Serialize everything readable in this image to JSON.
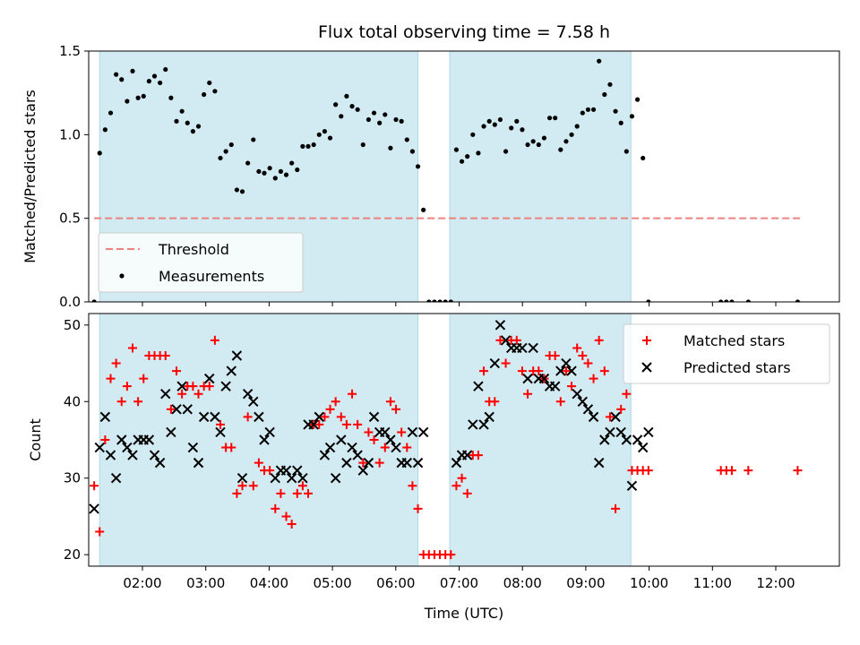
{
  "chart_data": [
    {
      "type": "scatter",
      "title": "Flux total observing time = 7.58 h",
      "ylabel": "Matched/Predicted stars",
      "xlabel": "",
      "xlim": [
        96,
        780
      ],
      "ylim": [
        0,
        1.5
      ],
      "x_ticks": [
        "02:00",
        "03:00",
        "04:00",
        "05:00",
        "06:00",
        "07:00",
        "08:00",
        "09:00",
        "10:00",
        "11:00",
        "12:00"
      ],
      "y_ticks": [
        "0.0",
        "0.5",
        "1.0",
        "1.5"
      ],
      "grid": false,
      "legend_position": "lower-left",
      "observing_windows": [
        [
          106,
          396
        ],
        [
          425,
          590
        ]
      ],
      "window_color": "#add8e6",
      "series": [
        {
          "name": "Threshold",
          "kind": "dashed-line",
          "color": "#f08080",
          "x": [
            101,
            744
          ],
          "y": [
            0.5,
            0.5
          ]
        },
        {
          "name": "Measurements",
          "kind": "dots",
          "color": "#000000",
          "x": [
            101,
            106,
            111,
            116,
            121,
            126,
            131,
            136,
            141,
            146,
            151,
            156,
            161,
            166,
            171,
            176,
            181,
            186,
            191,
            196,
            201,
            206,
            211,
            216,
            221,
            226,
            231,
            236,
            241,
            246,
            251,
            256,
            261,
            266,
            271,
            276,
            281,
            286,
            291,
            296,
            301,
            306,
            311,
            316,
            321,
            326,
            331,
            336,
            341,
            346,
            351,
            356,
            361,
            366,
            371,
            376,
            381,
            386,
            391,
            396,
            401,
            406,
            411,
            416,
            421,
            426,
            431,
            436,
            441,
            446,
            451,
            456,
            461,
            466,
            471,
            476,
            481,
            486,
            491,
            496,
            501,
            506,
            511,
            516,
            521,
            526,
            531,
            536,
            541,
            546,
            551,
            556,
            561,
            566,
            571,
            576,
            581,
            586,
            591,
            596,
            601,
            606,
            672,
            677,
            682,
            697,
            742
          ],
          "y": [
            0.0,
            0.89,
            1.03,
            1.13,
            1.36,
            1.33,
            1.2,
            1.38,
            1.22,
            1.23,
            1.32,
            1.35,
            1.31,
            1.39,
            1.22,
            1.08,
            1.14,
            1.07,
            1.02,
            1.05,
            1.24,
            1.31,
            1.26,
            0.86,
            0.9,
            0.94,
            0.67,
            0.66,
            0.83,
            0.97,
            0.78,
            0.77,
            0.8,
            0.74,
            0.78,
            0.76,
            0.83,
            0.79,
            0.93,
            0.93,
            0.94,
            1.0,
            1.02,
            0.98,
            1.18,
            1.11,
            1.23,
            1.17,
            1.15,
            0.94,
            1.09,
            1.13,
            1.07,
            1.12,
            0.92,
            1.09,
            1.08,
            0.97,
            0.9,
            0.81,
            0.55,
            0.0,
            0.0,
            0.0,
            0.0,
            0.0,
            0.91,
            0.84,
            0.87,
            1.0,
            0.89,
            1.05,
            1.08,
            1.06,
            1.09,
            0.9,
            1.04,
            1.08,
            1.03,
            0.94,
            0.96,
            0.94,
            0.98,
            1.1,
            1.1,
            0.91,
            0.96,
            1.0,
            1.05,
            1.13,
            1.15,
            1.15,
            1.44,
            1.24,
            1.3,
            1.14,
            1.07,
            0.9,
            1.11,
            1.21,
            0.86,
            0.0,
            0.0,
            0.0,
            0.0,
            0.0,
            0.0
          ]
        }
      ]
    },
    {
      "type": "scatter",
      "title": "",
      "ylabel": "Count",
      "xlabel": "Time (UTC)",
      "xlim": [
        96,
        780
      ],
      "ylim": [
        18.5,
        51.5
      ],
      "x_ticks": [
        "02:00",
        "03:00",
        "04:00",
        "05:00",
        "06:00",
        "07:00",
        "08:00",
        "09:00",
        "10:00",
        "11:00",
        "12:00"
      ],
      "y_ticks": [
        "20",
        "30",
        "40",
        "50"
      ],
      "grid": false,
      "legend_position": "top-right",
      "observing_windows": [
        [
          106,
          396
        ],
        [
          425,
          590
        ]
      ],
      "window_color": "#add8e6",
      "series": [
        {
          "name": "Matched stars",
          "kind": "plus",
          "color": "#ff0000",
          "x": [
            101,
            106,
            111,
            116,
            121,
            126,
            131,
            136,
            141,
            146,
            151,
            156,
            161,
            166,
            171,
            176,
            181,
            186,
            191,
            196,
            201,
            206,
            211,
            216,
            221,
            226,
            231,
            236,
            241,
            246,
            251,
            256,
            261,
            266,
            271,
            276,
            281,
            286,
            291,
            296,
            301,
            306,
            311,
            316,
            321,
            326,
            331,
            336,
            341,
            346,
            351,
            356,
            361,
            366,
            371,
            376,
            381,
            386,
            391,
            396,
            401,
            406,
            411,
            416,
            421,
            426,
            431,
            436,
            441,
            446,
            451,
            456,
            461,
            466,
            471,
            476,
            481,
            486,
            491,
            496,
            501,
            506,
            511,
            516,
            521,
            526,
            531,
            536,
            541,
            546,
            551,
            556,
            561,
            566,
            571,
            576,
            581,
            586,
            591,
            596,
            601,
            606,
            672,
            677,
            682,
            697,
            742
          ],
          "y": [
            29,
            23,
            35,
            43,
            45,
            40,
            42,
            47,
            40,
            43,
            46,
            46,
            46,
            46,
            39,
            44,
            41,
            42,
            42,
            41,
            42,
            42,
            48,
            37,
            34,
            34,
            28,
            29,
            38,
            29,
            32,
            31,
            31,
            26,
            28,
            25,
            24,
            28,
            29,
            28,
            37,
            37,
            38,
            39,
            40,
            38,
            37,
            41,
            37,
            32,
            36,
            35,
            32,
            34,
            40,
            39,
            36,
            34,
            29,
            26,
            20,
            20,
            20,
            20,
            20,
            20,
            29,
            30,
            28,
            33,
            33,
            44,
            40,
            40,
            48,
            45,
            48,
            48,
            44,
            41,
            44,
            44,
            43,
            46,
            46,
            40,
            44,
            42,
            47,
            46,
            45,
            43,
            48,
            44,
            38,
            26,
            39,
            41,
            31,
            31,
            31,
            31,
            31,
            31,
            31,
            31,
            31
          ]
        },
        {
          "name": "Predicted stars",
          "kind": "x",
          "color": "#000000",
          "x": [
            101,
            106,
            111,
            116,
            121,
            126,
            131,
            136,
            141,
            146,
            151,
            156,
            161,
            166,
            171,
            176,
            181,
            186,
            191,
            196,
            201,
            206,
            211,
            216,
            221,
            226,
            231,
            236,
            241,
            246,
            251,
            256,
            261,
            266,
            271,
            276,
            281,
            286,
            291,
            296,
            301,
            306,
            311,
            316,
            321,
            326,
            331,
            336,
            341,
            346,
            351,
            356,
            361,
            366,
            371,
            376,
            381,
            386,
            391,
            396,
            401,
            431,
            436,
            441,
            446,
            451,
            456,
            461,
            466,
            471,
            476,
            481,
            486,
            491,
            496,
            501,
            506,
            511,
            516,
            521,
            526,
            531,
            536,
            541,
            546,
            551,
            556,
            561,
            566,
            571,
            576,
            581,
            586,
            591,
            596,
            601,
            606
          ],
          "y": [
            26,
            34,
            38,
            33,
            30,
            35,
            34,
            33,
            35,
            35,
            35,
            33,
            32,
            41,
            36,
            39,
            42,
            39,
            34,
            32,
            38,
            43,
            38,
            36,
            42,
            44,
            46,
            30,
            41,
            40,
            38,
            35,
            36,
            30,
            31,
            31,
            30,
            31,
            30,
            37,
            37,
            38,
            33,
            34,
            30,
            35,
            32,
            34,
            33,
            31,
            32,
            38,
            36,
            36,
            35,
            34,
            32,
            32,
            36,
            32,
            36,
            32,
            33,
            33,
            37,
            42,
            37,
            38,
            45,
            50,
            48,
            47,
            47,
            47,
            43,
            47,
            43,
            43,
            42,
            42,
            44,
            45,
            44,
            41,
            40,
            39,
            38,
            32,
            35,
            36,
            38,
            36,
            35,
            29,
            35,
            34,
            36
          ]
        }
      ]
    }
  ]
}
